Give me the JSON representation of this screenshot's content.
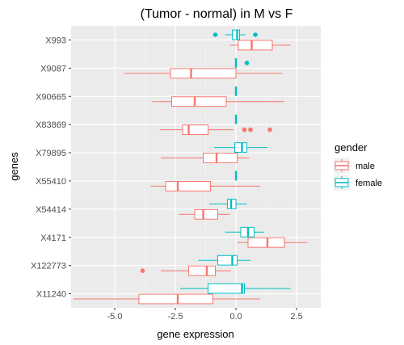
{
  "chart_data": {
    "type": "boxplot",
    "orientation": "horizontal",
    "title": "(Tumor - normal) in M vs F",
    "xlabel": "gene expression",
    "ylabel": "genes",
    "xlim": [
      -6.8,
      3.5
    ],
    "x_ticks": [
      -5.0,
      -2.5,
      0.0,
      2.5
    ],
    "x_tick_labels": [
      "-5.0",
      "-2.5",
      "0.0",
      "2.5"
    ],
    "categories": [
      "X993",
      "X9087",
      "X90665",
      "X83869",
      "X79895",
      "X55410",
      "X54414",
      "X4171",
      "X122773",
      "X11240"
    ],
    "legend": {
      "title": "gender",
      "position": "right"
    },
    "series": [
      {
        "name": "male",
        "color": "#F8766D",
        "boxes": [
          {
            "gene": "X993",
            "min": -0.25,
            "q1": 0.1,
            "median": 0.65,
            "q3": 1.5,
            "max": 2.25,
            "outliers": []
          },
          {
            "gene": "X9087",
            "min": -4.6,
            "q1": -2.7,
            "median": -1.85,
            "q3": 0.0,
            "max": 1.9,
            "outliers": []
          },
          {
            "gene": "X90665",
            "min": -3.45,
            "q1": -2.65,
            "median": -1.7,
            "q3": -0.4,
            "max": 2.0,
            "outliers": []
          },
          {
            "gene": "X83869",
            "min": -3.15,
            "q1": -2.2,
            "median": -1.95,
            "q3": -1.15,
            "max": -0.1,
            "outliers": [
              0.35,
              0.6,
              1.4
            ]
          },
          {
            "gene": "X79895",
            "min": -3.1,
            "q1": -1.35,
            "median": -0.8,
            "q3": 0.05,
            "max": 0.55,
            "outliers": []
          },
          {
            "gene": "X55410",
            "min": -3.5,
            "q1": -2.9,
            "median": -2.4,
            "q3": -1.05,
            "max": 1.0,
            "outliers": []
          },
          {
            "gene": "X54414",
            "min": -2.35,
            "q1": -1.7,
            "median": -1.35,
            "q3": -0.75,
            "max": -0.25,
            "outliers": []
          },
          {
            "gene": "X4171",
            "min": 0.05,
            "q1": 0.5,
            "median": 1.3,
            "q3": 2.0,
            "max": 2.95,
            "outliers": []
          },
          {
            "gene": "X122773",
            "min": -3.1,
            "q1": -1.95,
            "median": -1.2,
            "q3": -0.85,
            "max": -0.2,
            "outliers": [
              -3.85
            ]
          },
          {
            "gene": "X11240",
            "min": -6.7,
            "q1": -4.0,
            "median": -2.4,
            "q3": -0.95,
            "max": 1.0,
            "outliers": []
          }
        ]
      },
      {
        "name": "female",
        "color": "#00BFC4",
        "boxes": [
          {
            "gene": "X993",
            "min": -0.45,
            "q1": -0.15,
            "median": 0.05,
            "q3": 0.15,
            "max": 0.4,
            "outliers": [
              -0.85,
              0.8
            ]
          },
          {
            "gene": "X9087",
            "min": 0.0,
            "q1": 0.0,
            "median": 0.0,
            "q3": 0.0,
            "max": 0.0,
            "outliers": [
              0.45
            ]
          },
          {
            "gene": "X90665",
            "min": 0.0,
            "q1": 0.0,
            "median": 0.0,
            "q3": 0.0,
            "max": 0.0,
            "outliers": []
          },
          {
            "gene": "X83869",
            "min": 0.0,
            "q1": 0.0,
            "median": 0.0,
            "q3": 0.0,
            "max": 0.0,
            "outliers": []
          },
          {
            "gene": "X79895",
            "min": -0.9,
            "q1": -0.05,
            "median": 0.25,
            "q3": 0.45,
            "max": 1.3,
            "outliers": []
          },
          {
            "gene": "X55410",
            "min": 0.0,
            "q1": 0.0,
            "median": 0.0,
            "q3": 0.0,
            "max": 0.0,
            "outliers": []
          },
          {
            "gene": "X54414",
            "min": -1.1,
            "q1": -0.35,
            "median": -0.2,
            "q3": 0.0,
            "max": 0.45,
            "outliers": []
          },
          {
            "gene": "X4171",
            "min": -0.45,
            "q1": 0.2,
            "median": 0.5,
            "q3": 0.75,
            "max": 1.15,
            "outliers": []
          },
          {
            "gene": "X122773",
            "min": -1.55,
            "q1": -0.75,
            "median": -0.15,
            "q3": 0.05,
            "max": 0.6,
            "outliers": []
          },
          {
            "gene": "X11240",
            "min": -2.3,
            "q1": -1.15,
            "median": 0.25,
            "q3": 0.35,
            "max": 2.25,
            "outliers": []
          }
        ]
      }
    ],
    "grid": true,
    "panel_background": "#EBEBEB",
    "grid_color": "#FFFFFF"
  }
}
